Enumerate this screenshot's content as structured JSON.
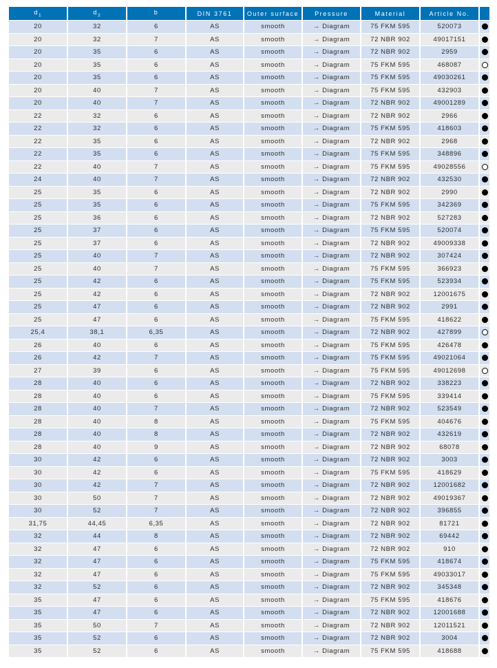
{
  "colors": {
    "header_bg": "#0072b5",
    "row_blue": "#d3dff0",
    "row_gray": "#ebebeb",
    "cell_text": "#2b2b2b",
    "header_text": "#ffffff",
    "dot_color": "#000000",
    "page_bg": "#ffffff"
  },
  "table": {
    "columns": [
      {
        "base": "d",
        "sub": "1"
      },
      {
        "base": "d",
        "sub": "2"
      },
      {
        "base": "b",
        "sub": ""
      },
      {
        "base": "DIN 3761",
        "sub": ""
      },
      {
        "base": "Outer surface",
        "sub": ""
      },
      {
        "base": "Pressure",
        "sub": ""
      },
      {
        "base": "Material",
        "sub": ""
      },
      {
        "base": "Article No.",
        "sub": ""
      },
      {
        "base": "",
        "sub": ""
      }
    ],
    "rows": [
      {
        "d1": "20",
        "d2": "32",
        "b": "6",
        "din": "AS",
        "outer_surface": "smooth",
        "pressure": "→ Diagram",
        "material": "75 FKM 595",
        "article_no": "520073",
        "dot": "filled"
      },
      {
        "d1": "20",
        "d2": "32",
        "b": "7",
        "din": "AS",
        "outer_surface": "smooth",
        "pressure": "→ Diagram",
        "material": "72 NBR 902",
        "article_no": "49017151",
        "dot": "filled"
      },
      {
        "d1": "20",
        "d2": "35",
        "b": "6",
        "din": "AS",
        "outer_surface": "smooth",
        "pressure": "→ Diagram",
        "material": "72 NBR 902",
        "article_no": "2959",
        "dot": "filled"
      },
      {
        "d1": "20",
        "d2": "35",
        "b": "6",
        "din": "AS",
        "outer_surface": "smooth",
        "pressure": "→ Diagram",
        "material": "75 FKM 595",
        "article_no": "468087",
        "dot": "open"
      },
      {
        "d1": "20",
        "d2": "35",
        "b": "6",
        "din": "AS",
        "outer_surface": "smooth",
        "pressure": "→ Diagram",
        "material": "75 FKM 595",
        "article_no": "49030261",
        "dot": "filled"
      },
      {
        "d1": "20",
        "d2": "40",
        "b": "7",
        "din": "AS",
        "outer_surface": "smooth",
        "pressure": "→ Diagram",
        "material": "75 FKM 595",
        "article_no": "432903",
        "dot": "filled"
      },
      {
        "d1": "20",
        "d2": "40",
        "b": "7",
        "din": "AS",
        "outer_surface": "smooth",
        "pressure": "→ Diagram",
        "material": "72 NBR 902",
        "article_no": "49001289",
        "dot": "filled"
      },
      {
        "d1": "22",
        "d2": "32",
        "b": "6",
        "din": "AS",
        "outer_surface": "smooth",
        "pressure": "→ Diagram",
        "material": "72 NBR 902",
        "article_no": "2966",
        "dot": "filled"
      },
      {
        "d1": "22",
        "d2": "32",
        "b": "6",
        "din": "AS",
        "outer_surface": "smooth",
        "pressure": "→ Diagram",
        "material": "75 FKM 595",
        "article_no": "418603",
        "dot": "filled"
      },
      {
        "d1": "22",
        "d2": "35",
        "b": "6",
        "din": "AS",
        "outer_surface": "smooth",
        "pressure": "→ Diagram",
        "material": "72 NBR 902",
        "article_no": "2968",
        "dot": "filled"
      },
      {
        "d1": "22",
        "d2": "35",
        "b": "6",
        "din": "AS",
        "outer_surface": "smooth",
        "pressure": "→ Diagram",
        "material": "75 FKM 595",
        "article_no": "348896",
        "dot": "filled"
      },
      {
        "d1": "22",
        "d2": "40",
        "b": "7",
        "din": "AS",
        "outer_surface": "smooth",
        "pressure": "→ Diagram",
        "material": "75 FKM 595",
        "article_no": "49028556",
        "dot": "open"
      },
      {
        "d1": "24",
        "d2": "40",
        "b": "7",
        "din": "AS",
        "outer_surface": "smooth",
        "pressure": "→ Diagram",
        "material": "72 NBR 902",
        "article_no": "432530",
        "dot": "filled"
      },
      {
        "d1": "25",
        "d2": "35",
        "b": "6",
        "din": "AS",
        "outer_surface": "smooth",
        "pressure": "→ Diagram",
        "material": "72 NBR 902",
        "article_no": "2990",
        "dot": "filled"
      },
      {
        "d1": "25",
        "d2": "35",
        "b": "6",
        "din": "AS",
        "outer_surface": "smooth",
        "pressure": "→ Diagram",
        "material": "75 FKM 595",
        "article_no": "342369",
        "dot": "filled"
      },
      {
        "d1": "25",
        "d2": "36",
        "b": "6",
        "din": "AS",
        "outer_surface": "smooth",
        "pressure": "→ Diagram",
        "material": "72 NBR 902",
        "article_no": "527283",
        "dot": "filled"
      },
      {
        "d1": "25",
        "d2": "37",
        "b": "6",
        "din": "AS",
        "outer_surface": "smooth",
        "pressure": "→ Diagram",
        "material": "75 FKM 595",
        "article_no": "520074",
        "dot": "filled"
      },
      {
        "d1": "25",
        "d2": "37",
        "b": "6",
        "din": "AS",
        "outer_surface": "smooth",
        "pressure": "→ Diagram",
        "material": "72 NBR 902",
        "article_no": "49009338",
        "dot": "filled"
      },
      {
        "d1": "25",
        "d2": "40",
        "b": "7",
        "din": "AS",
        "outer_surface": "smooth",
        "pressure": "→ Diagram",
        "material": "72 NBR 902",
        "article_no": "307424",
        "dot": "filled"
      },
      {
        "d1": "25",
        "d2": "40",
        "b": "7",
        "din": "AS",
        "outer_surface": "smooth",
        "pressure": "→ Diagram",
        "material": "75 FKM 595",
        "article_no": "366923",
        "dot": "filled"
      },
      {
        "d1": "25",
        "d2": "42",
        "b": "6",
        "din": "AS",
        "outer_surface": "smooth",
        "pressure": "→ Diagram",
        "material": "75 FKM 595",
        "article_no": "523934",
        "dot": "filled"
      },
      {
        "d1": "25",
        "d2": "42",
        "b": "6",
        "din": "AS",
        "outer_surface": "smooth",
        "pressure": "→ Diagram",
        "material": "72 NBR 902",
        "article_no": "12001675",
        "dot": "filled"
      },
      {
        "d1": "25",
        "d2": "47",
        "b": "6",
        "din": "AS",
        "outer_surface": "smooth",
        "pressure": "→ Diagram",
        "material": "72 NBR 902",
        "article_no": "2991",
        "dot": "filled"
      },
      {
        "d1": "25",
        "d2": "47",
        "b": "6",
        "din": "AS",
        "outer_surface": "smooth",
        "pressure": "→ Diagram",
        "material": "75 FKM 595",
        "article_no": "418622",
        "dot": "filled"
      },
      {
        "d1": "25,4",
        "d2": "38,1",
        "b": "6,35",
        "din": "AS",
        "outer_surface": "smooth",
        "pressure": "→ Diagram",
        "material": "72 NBR 902",
        "article_no": "427899",
        "dot": "open"
      },
      {
        "d1": "26",
        "d2": "40",
        "b": "6",
        "din": "AS",
        "outer_surface": "smooth",
        "pressure": "→ Diagram",
        "material": "75 FKM 595",
        "article_no": "426478",
        "dot": "filled"
      },
      {
        "d1": "26",
        "d2": "42",
        "b": "7",
        "din": "AS",
        "outer_surface": "smooth",
        "pressure": "→ Diagram",
        "material": "75 FKM 595",
        "article_no": "49021064",
        "dot": "filled"
      },
      {
        "d1": "27",
        "d2": "39",
        "b": "6",
        "din": "AS",
        "outer_surface": "smooth",
        "pressure": "→ Diagram",
        "material": "75 FKM 595",
        "article_no": "49012698",
        "dot": "open"
      },
      {
        "d1": "28",
        "d2": "40",
        "b": "6",
        "din": "AS",
        "outer_surface": "smooth",
        "pressure": "→ Diagram",
        "material": "72 NBR 902",
        "article_no": "338223",
        "dot": "filled"
      },
      {
        "d1": "28",
        "d2": "40",
        "b": "6",
        "din": "AS",
        "outer_surface": "smooth",
        "pressure": "→ Diagram",
        "material": "75 FKM 595",
        "article_no": "339414",
        "dot": "filled"
      },
      {
        "d1": "28",
        "d2": "40",
        "b": "7",
        "din": "AS",
        "outer_surface": "smooth",
        "pressure": "→ Diagram",
        "material": "72 NBR 902",
        "article_no": "523549",
        "dot": "filled"
      },
      {
        "d1": "28",
        "d2": "40",
        "b": "8",
        "din": "AS",
        "outer_surface": "smooth",
        "pressure": "→ Diagram",
        "material": "75 FKM 595",
        "article_no": "404676",
        "dot": "filled"
      },
      {
        "d1": "28",
        "d2": "40",
        "b": "8",
        "din": "AS",
        "outer_surface": "smooth",
        "pressure": "→ Diagram",
        "material": "72 NBR 902",
        "article_no": "432619",
        "dot": "filled"
      },
      {
        "d1": "28",
        "d2": "40",
        "b": "9",
        "din": "AS",
        "outer_surface": "smooth",
        "pressure": "→ Diagram",
        "material": "72 NBR 902",
        "article_no": "68078",
        "dot": "filled"
      },
      {
        "d1": "30",
        "d2": "42",
        "b": "6",
        "din": "AS",
        "outer_surface": "smooth",
        "pressure": "→ Diagram",
        "material": "72 NBR 902",
        "article_no": "3003",
        "dot": "filled"
      },
      {
        "d1": "30",
        "d2": "42",
        "b": "6",
        "din": "AS",
        "outer_surface": "smooth",
        "pressure": "→ Diagram",
        "material": "75 FKM 595",
        "article_no": "418629",
        "dot": "filled"
      },
      {
        "d1": "30",
        "d2": "42",
        "b": "7",
        "din": "AS",
        "outer_surface": "smooth",
        "pressure": "→ Diagram",
        "material": "72 NBR 902",
        "article_no": "12001682",
        "dot": "filled"
      },
      {
        "d1": "30",
        "d2": "50",
        "b": "7",
        "din": "AS",
        "outer_surface": "smooth",
        "pressure": "→ Diagram",
        "material": "72 NBR 902",
        "article_no": "49019367",
        "dot": "filled"
      },
      {
        "d1": "30",
        "d2": "52",
        "b": "7",
        "din": "AS",
        "outer_surface": "smooth",
        "pressure": "→ Diagram",
        "material": "72 NBR 902",
        "article_no": "396855",
        "dot": "filled"
      },
      {
        "d1": "31,75",
        "d2": "44,45",
        "b": "6,35",
        "din": "AS",
        "outer_surface": "smooth",
        "pressure": "→ Diagram",
        "material": "72 NBR 902",
        "article_no": "81721",
        "dot": "filled"
      },
      {
        "d1": "32",
        "d2": "44",
        "b": "8",
        "din": "AS",
        "outer_surface": "smooth",
        "pressure": "→ Diagram",
        "material": "72 NBR 902",
        "article_no": "69442",
        "dot": "filled"
      },
      {
        "d1": "32",
        "d2": "47",
        "b": "6",
        "din": "AS",
        "outer_surface": "smooth",
        "pressure": "→ Diagram",
        "material": "72 NBR 902",
        "article_no": "910",
        "dot": "filled"
      },
      {
        "d1": "32",
        "d2": "47",
        "b": "6",
        "din": "AS",
        "outer_surface": "smooth",
        "pressure": "→ Diagram",
        "material": "75 FKM 595",
        "article_no": "418674",
        "dot": "filled"
      },
      {
        "d1": "32",
        "d2": "47",
        "b": "6",
        "din": "AS",
        "outer_surface": "smooth",
        "pressure": "→ Diagram",
        "material": "75 FKM 595",
        "article_no": "49033017",
        "dot": "filled"
      },
      {
        "d1": "32",
        "d2": "52",
        "b": "6",
        "din": "AS",
        "outer_surface": "smooth",
        "pressure": "→ Diagram",
        "material": "72 NBR 902",
        "article_no": "345348",
        "dot": "filled"
      },
      {
        "d1": "35",
        "d2": "47",
        "b": "6",
        "din": "AS",
        "outer_surface": "smooth",
        "pressure": "→ Diagram",
        "material": "75 FKM 595",
        "article_no": "418676",
        "dot": "filled"
      },
      {
        "d1": "35",
        "d2": "47",
        "b": "6",
        "din": "AS",
        "outer_surface": "smooth",
        "pressure": "→ Diagram",
        "material": "72 NBR 902",
        "article_no": "12001688",
        "dot": "filled"
      },
      {
        "d1": "35",
        "d2": "50",
        "b": "7",
        "din": "AS",
        "outer_surface": "smooth",
        "pressure": "→ Diagram",
        "material": "72 NBR 902",
        "article_no": "12011521",
        "dot": "filled"
      },
      {
        "d1": "35",
        "d2": "52",
        "b": "6",
        "din": "AS",
        "outer_surface": "smooth",
        "pressure": "→ Diagram",
        "material": "72 NBR 902",
        "article_no": "3004",
        "dot": "filled"
      },
      {
        "d1": "35",
        "d2": "52",
        "b": "6",
        "din": "AS",
        "outer_surface": "smooth",
        "pressure": "→ Diagram",
        "material": "75 FKM 595",
        "article_no": "418688",
        "dot": "filled"
      }
    ]
  }
}
